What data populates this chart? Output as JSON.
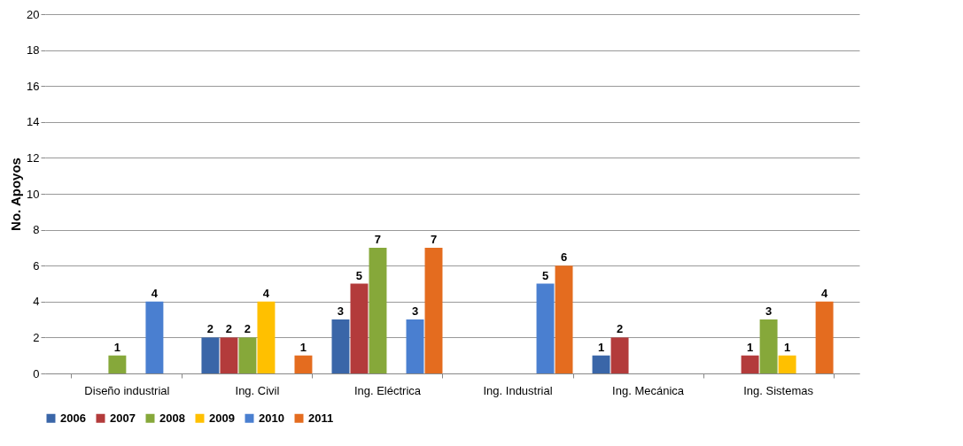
{
  "chart_data": {
    "type": "bar",
    "ylabel": "No. Apoyos",
    "categories": [
      "Diseño industrial",
      "Ing. Civil",
      "Ing. Eléctrica",
      "Ing. Industrial",
      "Ing. Mecánica",
      "Ing. Sistemas"
    ],
    "series": [
      {
        "name": "2006",
        "color": "#3a66a8",
        "values": [
          null,
          2,
          3,
          null,
          1,
          null
        ]
      },
      {
        "name": "2007",
        "color": "#b33b3b",
        "values": [
          null,
          2,
          5,
          null,
          2,
          1
        ]
      },
      {
        "name": "2008",
        "color": "#86a83a",
        "values": [
          1,
          2,
          7,
          null,
          null,
          3
        ]
      },
      {
        "name": "2009",
        "color": "#ffc000",
        "values": [
          null,
          4,
          null,
          null,
          null,
          1
        ]
      },
      {
        "name": "2010",
        "color": "#4a7fd0",
        "values": [
          4,
          null,
          3,
          5,
          null,
          null
        ]
      },
      {
        "name": "2011",
        "color": "#e46c1f",
        "values": [
          null,
          1,
          7,
          6,
          null,
          4
        ]
      }
    ],
    "ylim": [
      0,
      20
    ],
    "yticks": [
      0,
      2,
      4,
      6,
      8,
      10,
      12,
      14,
      16,
      18,
      20
    ],
    "grid": "y",
    "legend": "bottom",
    "data_labels": true
  }
}
